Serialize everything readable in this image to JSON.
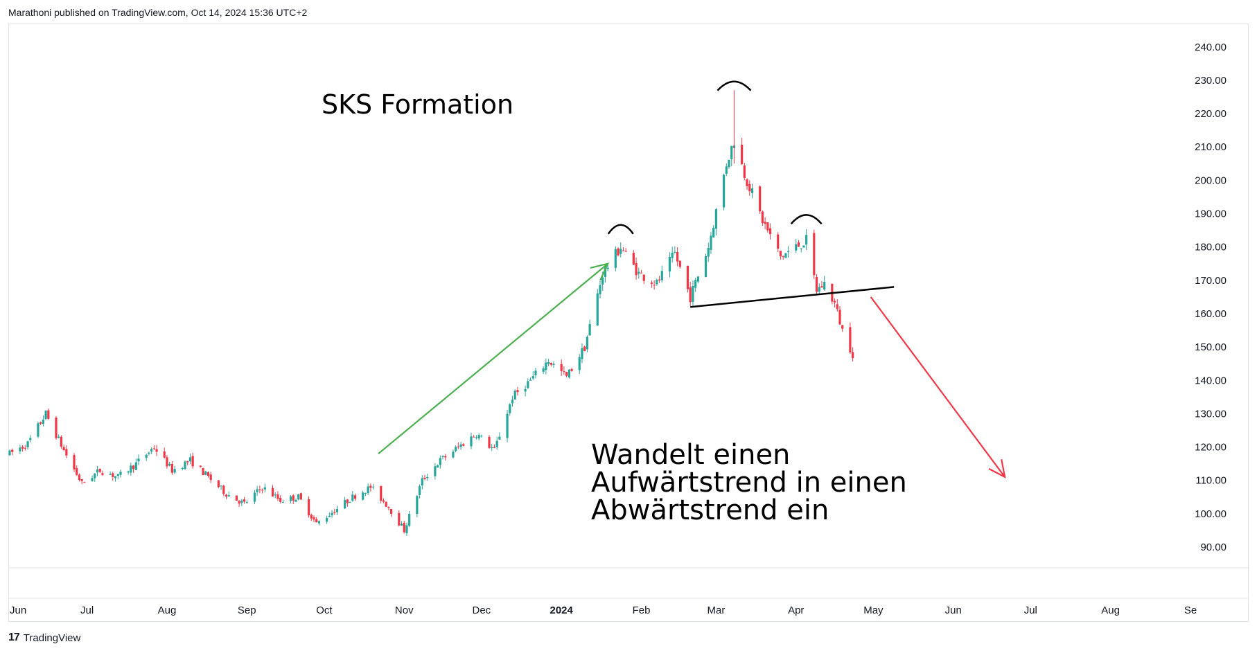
{
  "header": {
    "publish_text": "Marathoni published on TradingView.com, Oct 14, 2024 15:36 UTC+2"
  },
  "footer": {
    "brand": "TradingView",
    "logo_glyph": "17"
  },
  "annotations": {
    "title": "SKS Formation",
    "body_lines": [
      "Wandelt einen",
      "Aufwärtstrend in einen",
      "Abwärtstrend ein"
    ]
  },
  "colors": {
    "up": "#26a69a",
    "down": "#f23645",
    "arrow_up": "#4caf50",
    "arrow_down": "#f23645",
    "neckline": "#000000"
  },
  "chart_data": {
    "type": "candlestick",
    "title": "",
    "xlabel": "",
    "ylabel": "",
    "ylim": [
      83,
      250
    ],
    "yticks": [
      90,
      100,
      110,
      120,
      130,
      140,
      150,
      160,
      170,
      180,
      190,
      200,
      210,
      220,
      230,
      240
    ],
    "ytick_labels": [
      "90.00",
      "100.00",
      "110.00",
      "120.00",
      "130.00",
      "140.00",
      "150.00",
      "160.00",
      "170.00",
      "180.00",
      "190.00",
      "200.00",
      "210.00",
      "220.00",
      "230.00",
      "240.00"
    ],
    "xticks": [
      {
        "label": "Jun",
        "date": "2023-06-01"
      },
      {
        "label": "Jul",
        "date": "2023-07-01"
      },
      {
        "label": "Aug",
        "date": "2023-08-01"
      },
      {
        "label": "Sep",
        "date": "2023-09-01"
      },
      {
        "label": "Oct",
        "date": "2023-10-01"
      },
      {
        "label": "Nov",
        "date": "2023-11-01"
      },
      {
        "label": "Dec",
        "date": "2023-12-01"
      },
      {
        "label": "2024",
        "date": "2024-01-01",
        "bold": true
      },
      {
        "label": "Feb",
        "date": "2024-02-01"
      },
      {
        "label": "Mar",
        "date": "2024-03-01"
      },
      {
        "label": "Apr",
        "date": "2024-04-01"
      },
      {
        "label": "May",
        "date": "2024-05-01"
      },
      {
        "label": "Jun",
        "date": "2024-06-01"
      },
      {
        "label": "Jul",
        "date": "2024-07-01"
      },
      {
        "label": "Aug",
        "date": "2024-08-01"
      },
      {
        "label": "Se",
        "date": "2024-09-01"
      }
    ],
    "price_path": [
      [
        "2023-06-01",
        118
      ],
      [
        "2023-06-08",
        121
      ],
      [
        "2023-06-15",
        130
      ],
      [
        "2023-06-22",
        119
      ],
      [
        "2023-06-29",
        109
      ],
      [
        "2023-07-06",
        113
      ],
      [
        "2023-07-13",
        111
      ],
      [
        "2023-07-20",
        115
      ],
      [
        "2023-07-27",
        120
      ],
      [
        "2023-08-03",
        113
      ],
      [
        "2023-08-10",
        116
      ],
      [
        "2023-08-17",
        111
      ],
      [
        "2023-08-24",
        106
      ],
      [
        "2023-08-31",
        103
      ],
      [
        "2023-09-07",
        108
      ],
      [
        "2023-09-14",
        104
      ],
      [
        "2023-09-21",
        105
      ],
      [
        "2023-09-28",
        97
      ],
      [
        "2023-10-05",
        101
      ],
      [
        "2023-10-12",
        105
      ],
      [
        "2023-10-19",
        108
      ],
      [
        "2023-10-26",
        102
      ],
      [
        "2023-11-01",
        95
      ],
      [
        "2023-11-08",
        110
      ],
      [
        "2023-11-15",
        116
      ],
      [
        "2023-11-22",
        120
      ],
      [
        "2023-11-29",
        124
      ],
      [
        "2023-12-06",
        119
      ],
      [
        "2023-12-13",
        135
      ],
      [
        "2023-12-20",
        140
      ],
      [
        "2023-12-27",
        146
      ],
      [
        "2024-01-03",
        141
      ],
      [
        "2024-01-10",
        150
      ],
      [
        "2024-01-17",
        172
      ],
      [
        "2024-01-24",
        180
      ],
      [
        "2024-01-31",
        172
      ],
      [
        "2024-02-07",
        169
      ],
      [
        "2024-02-14",
        178
      ],
      [
        "2024-02-20",
        165
      ],
      [
        "2024-02-27",
        180
      ],
      [
        "2024-03-05",
        205
      ],
      [
        "2024-03-08",
        212
      ],
      [
        "2024-03-12",
        202
      ],
      [
        "2024-03-19",
        188
      ],
      [
        "2024-03-26",
        177
      ],
      [
        "2024-04-01",
        180
      ],
      [
        "2024-04-05",
        182
      ],
      [
        "2024-04-09",
        167
      ],
      [
        "2024-04-12",
        169
      ],
      [
        "2024-04-16",
        163
      ],
      [
        "2024-04-19",
        155
      ],
      [
        "2024-04-23",
        148
      ]
    ],
    "head_and_shoulders": {
      "left_shoulder": {
        "date": "2024-01-24",
        "price": 186
      },
      "head": {
        "date": "2024-03-08",
        "price": 229
      },
      "right_shoulder": {
        "date": "2024-04-05",
        "price": 189
      },
      "neckline": [
        {
          "date": "2024-02-20",
          "price": 162
        },
        {
          "date": "2024-05-09",
          "price": 168
        }
      ]
    },
    "arrows": [
      {
        "name": "uptrend-arrow",
        "from": {
          "date": "2023-10-22",
          "price": 118
        },
        "to": {
          "date": "2024-01-19",
          "price": 175
        }
      },
      {
        "name": "downtrend-arrow",
        "from": {
          "date": "2024-04-30",
          "price": 165
        },
        "to": {
          "date": "2024-06-21",
          "price": 111
        }
      }
    ]
  }
}
